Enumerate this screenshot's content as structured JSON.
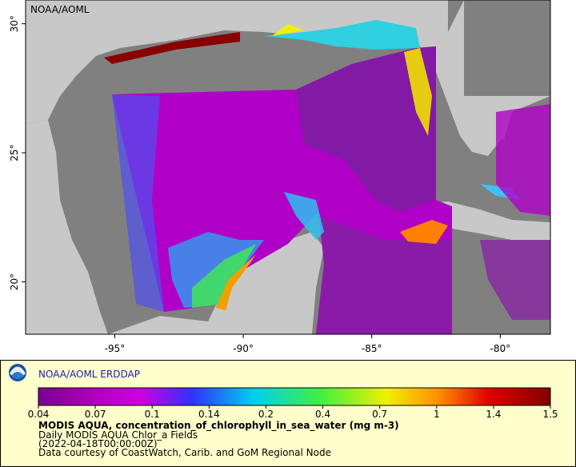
{
  "map": {
    "label": "NOAA/AOML",
    "lonlim": [
      -98.47,
      -78.05
    ],
    "latlim": [
      17.97,
      30.92
    ],
    "lon_ticks": [
      {
        "value": -95,
        "label": "-95°"
      },
      {
        "value": -90,
        "label": "-90°"
      },
      {
        "value": -85,
        "label": "-85°"
      },
      {
        "value": -80,
        "label": "-80°"
      }
    ],
    "lat_ticks": [
      {
        "value": 20,
        "label": "20°"
      },
      {
        "value": 25,
        "label": "25°"
      },
      {
        "value": 30,
        "label": "30°"
      }
    ]
  },
  "legend": {
    "brand": "NOAA/AOML ERDDAP",
    "colorbar_ticks": [
      0.04,
      0.07,
      0.1,
      0.14,
      0.2,
      0.4,
      0.7,
      1,
      1.4,
      1.5
    ],
    "title": "MODIS AQUA, concentration_of_chlorophyll_in_sea_water (mg m-3)",
    "lines": [
      "Daily MODIS AQUA Chlor_a Fields",
      "(2022-04-18T00:00:00Z)",
      "Data courtesy of CoastWatch, Carib. and GoM Regional Node"
    ]
  }
}
